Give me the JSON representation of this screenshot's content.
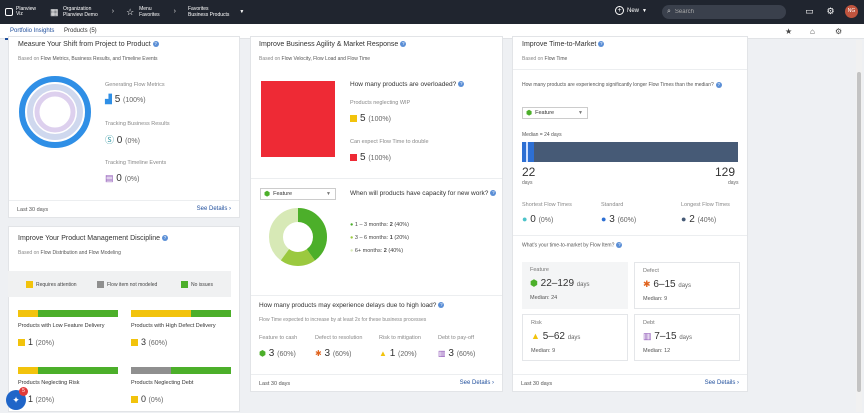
{
  "topbar": {
    "logo_line1": "Planview",
    "logo_line2": "Viz",
    "org_label": "Organization",
    "org_value": "Planview Demo",
    "menu_label": "Menu",
    "menu_value": "Favorites",
    "fav_label": "Favorites",
    "fav_value": "Business Products",
    "new_label": "New",
    "search_placeholder": "Search",
    "avatar_initials": "NG"
  },
  "tabs": [
    {
      "label": "Portfolio Insights"
    },
    {
      "label": "Products (5)"
    }
  ],
  "card1": {
    "title": "Measure Your Shift from Project to Product",
    "subtitle_pre": "Based on",
    "subtitle_items": "Flow Metrics, Business Results, and Timeline Events",
    "metrics": [
      {
        "label": "Generating Flow Metrics",
        "value": "5",
        "pct": "(100%)"
      },
      {
        "label": "Tracking Business Results",
        "value": "0",
        "pct": "(0%)"
      },
      {
        "label": "Tracking Timeline Events",
        "value": "0",
        "pct": "(0%)"
      }
    ],
    "footer_left": "Last 30 days",
    "footer_right": "See Details"
  },
  "card2": {
    "title": "Improve Your Product Management Discipline",
    "subtitle_pre": "Based on",
    "subtitle_items": "Flow Distribution and Flow Modeling",
    "legend": [
      "Requires attention",
      "Flow item not modeled",
      "No issues"
    ],
    "items": [
      {
        "label": "Products with Low Feature Delivery",
        "value": "1",
        "pct": "(20%)"
      },
      {
        "label": "Products with High Defect Delivery",
        "value": "3",
        "pct": "(60%)"
      },
      {
        "label": "Products Neglecting Risk",
        "value": "1",
        "pct": "(20%)"
      },
      {
        "label": "Products Neglecting Debt",
        "value": "0",
        "pct": "(0%)"
      }
    ]
  },
  "card3": {
    "title": "Improve Business Agility & Market Response",
    "subtitle_pre": "Based on",
    "subtitle_items": "Flow Velocity, Flow Load and Flow Time",
    "q1": "How many products are overloaded?",
    "neglect_label": "Products neglecting WIP",
    "neglect_value": "5",
    "neglect_pct": "(100%)",
    "double_label": "Can expect Flow Time to double",
    "double_value": "5",
    "double_pct": "(100%)",
    "select_value": "Feature",
    "q2": "When will products have capacity for new work?",
    "capacity": [
      {
        "label": "1 – 3 months:",
        "value": "2",
        "pct": "(40%)"
      },
      {
        "label": "3 – 6 months:",
        "value": "1",
        "pct": "(20%)"
      },
      {
        "label": "6+ months:",
        "value": "2",
        "pct": "(40%)"
      }
    ],
    "q3": "How many products may experience delays due to high load?",
    "q3_sub": "Flow Time expected to increase by at least 2x for these business processes",
    "delays": [
      {
        "label": "Feature to cash",
        "value": "3",
        "pct": "(60%)"
      },
      {
        "label": "Defect to resolution",
        "value": "3",
        "pct": "(60%)"
      },
      {
        "label": "Risk to mitigation",
        "value": "1",
        "pct": "(20%)"
      },
      {
        "label": "Debt to pay-off",
        "value": "3",
        "pct": "(60%)"
      }
    ],
    "footer_left": "Last 30 days",
    "footer_right": "See Details"
  },
  "card4": {
    "title": "Improve Time-to-Market",
    "subtitle_pre": "Based on",
    "subtitle_items": "Flow Time",
    "q1": "How many products are experiencing significantly longer Flow Times than the median?",
    "select_value": "Feature",
    "median_label": "Median = 24 days",
    "range_min": "22",
    "range_max": "129",
    "days_label": "days",
    "groups": [
      {
        "label": "Shortest Flow Times",
        "value": "0",
        "pct": "(0%)"
      },
      {
        "label": "Standard",
        "value": "3",
        "pct": "(60%)"
      },
      {
        "label": "Longest Flow Times",
        "value": "2",
        "pct": "(40%)"
      }
    ],
    "q2": "What's your time-to-market by Flow Item?",
    "tiles": [
      {
        "title": "Feature",
        "range": "22–129",
        "median": "Median: 24"
      },
      {
        "title": "Defect",
        "range": "6–15",
        "median": "Median: 9"
      },
      {
        "title": "Risk",
        "range": "5–62",
        "median": "Median: 9"
      },
      {
        "title": "Debt",
        "range": "7–15",
        "median": "Median: 12"
      }
    ],
    "footer_left": "Last 30 days",
    "footer_right": "See Details"
  },
  "float_badge": "5",
  "colors": {
    "accent": "#1f4e9c",
    "yellow": "#f2c30c",
    "red": "#ee2a35",
    "green": "#4caf2a",
    "grey": "#8f8f8f"
  }
}
